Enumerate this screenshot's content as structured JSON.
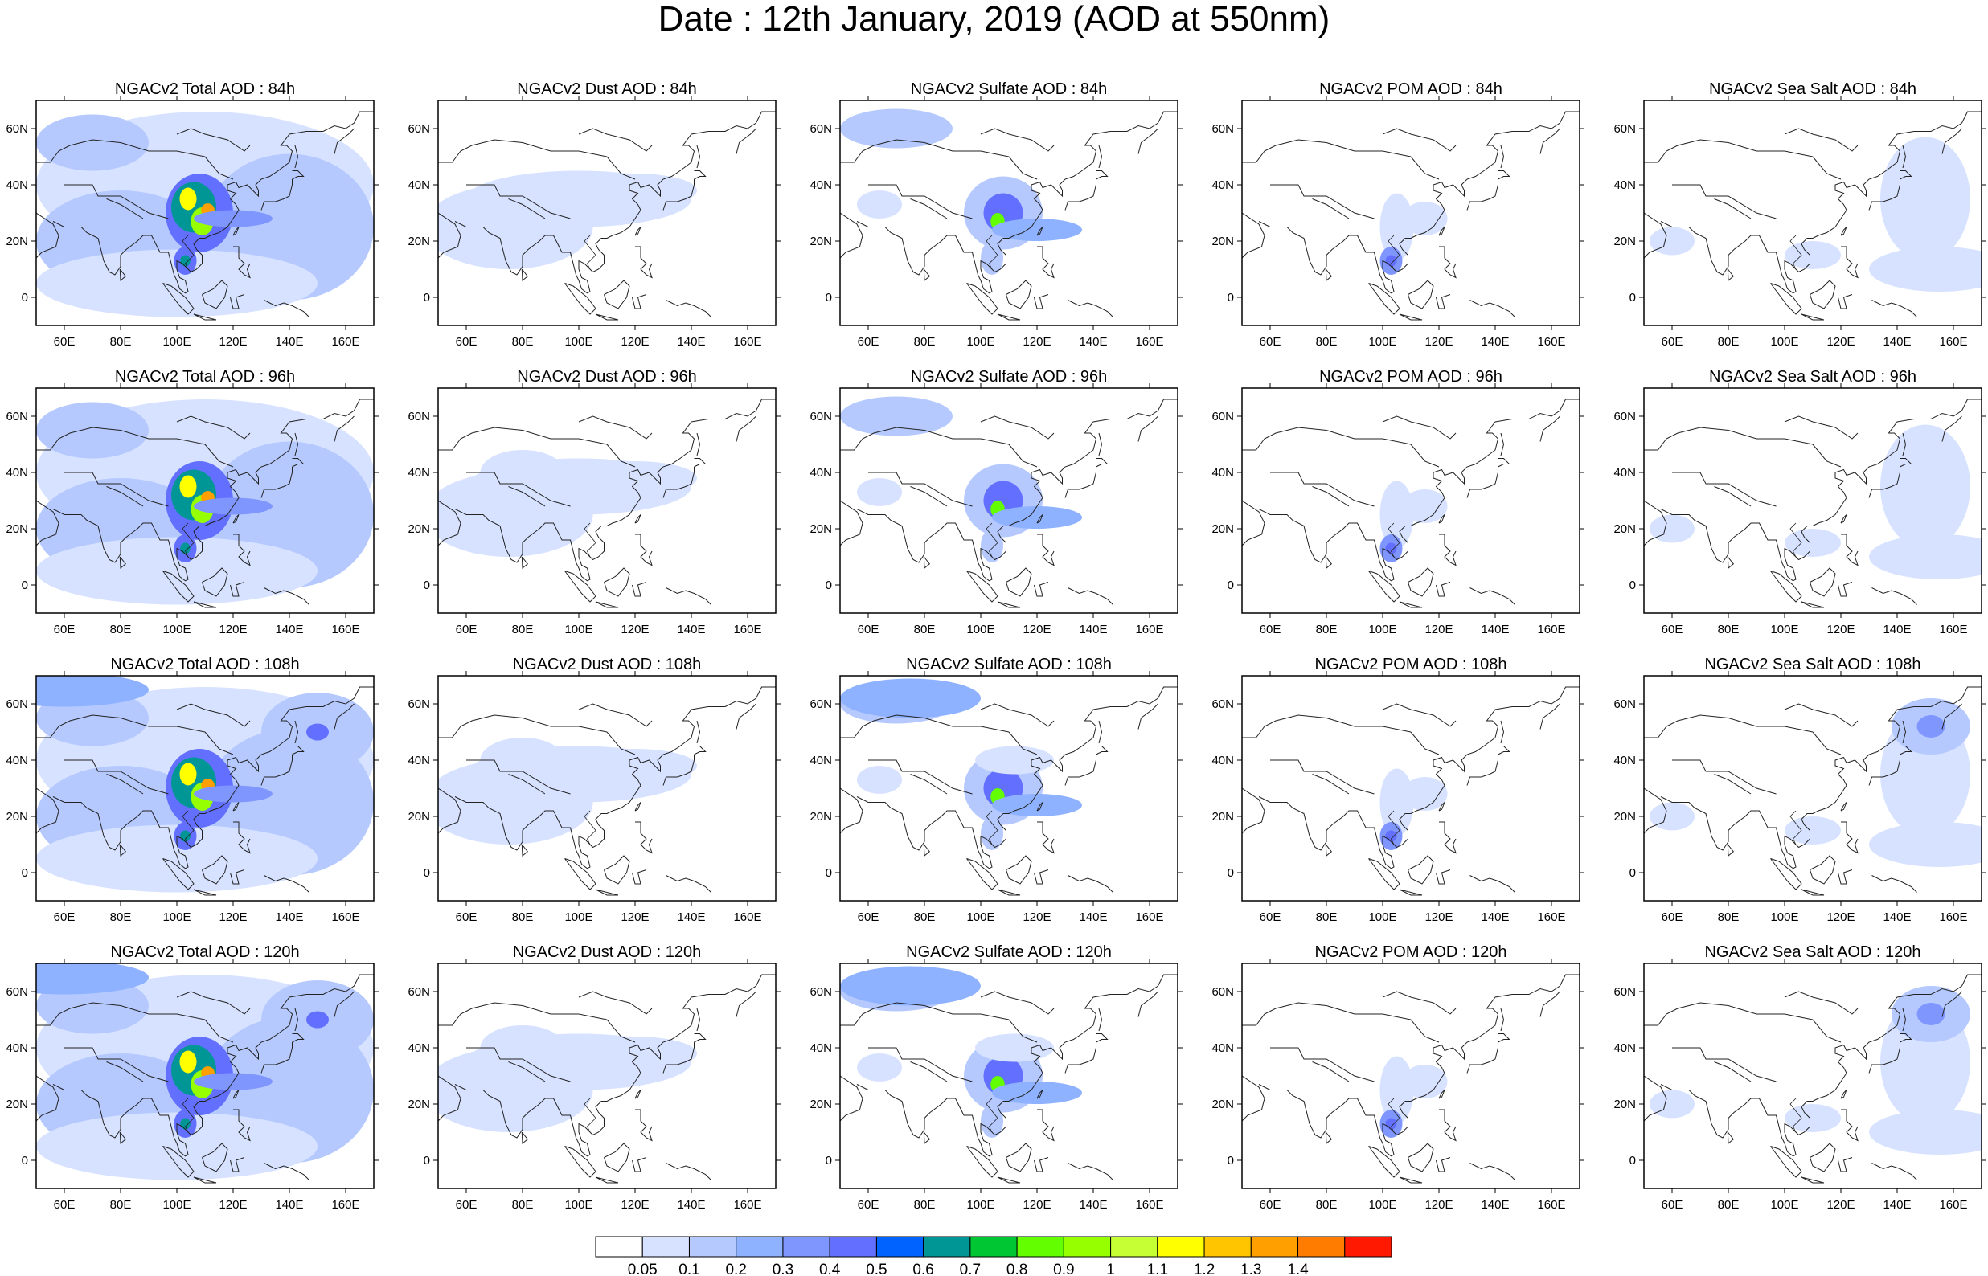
{
  "title": "Date : 12th January, 2019 (AOD at 550nm)",
  "species": [
    "Total",
    "Dust",
    "Sulfate",
    "POM",
    "Sea Salt"
  ],
  "panel_titles": [
    [
      "NGACv2 Total AOD : 84h",
      "NGACv2 Dust AOD : 84h",
      "NGACv2 Sulfate AOD : 84h",
      "NGACv2 POM AOD : 84h",
      "NGACv2 Sea Salt AOD : 84h"
    ],
    [
      "NGACv2 Total AOD : 96h",
      "NGACv2 Dust AOD : 96h",
      "NGACv2 Sulfate AOD : 96h",
      "NGACv2 POM AOD : 96h",
      "NGACv2 Sea Salt AOD : 96h"
    ],
    [
      "NGACv2 Total AOD : 108h",
      "NGACv2 Dust AOD : 108h",
      "NGACv2 Sulfate AOD : 108h",
      "NGACv2 POM AOD : 108h",
      "NGACv2 Sea Salt AOD : 108h"
    ],
    [
      "NGACv2 Total AOD : 120h",
      "NGACv2 Dust AOD : 120h",
      "NGACv2 Sulfate AOD : 120h",
      "NGACv2 POM AOD : 120h",
      "NGACv2 Sea Salt  AOD : 120h"
    ]
  ],
  "lead_hours": [
    "84h",
    "96h",
    "108h",
    "120h"
  ],
  "map_extent": {
    "lon": [
      50,
      170
    ],
    "lat": [
      -10,
      70
    ]
  },
  "x_ticks": [
    {
      "value": 60,
      "label": "60E"
    },
    {
      "value": 80,
      "label": "80E"
    },
    {
      "value": 100,
      "label": "100E"
    },
    {
      "value": 120,
      "label": "120E"
    },
    {
      "value": 140,
      "label": "140E"
    },
    {
      "value": 160,
      "label": "160E"
    }
  ],
  "y_ticks": [
    {
      "value": 0,
      "label": "0"
    },
    {
      "value": 20,
      "label": "20N"
    },
    {
      "value": 40,
      "label": "40N"
    },
    {
      "value": 60,
      "label": "60N"
    }
  ],
  "colorbar": {
    "colors": [
      "#ffffff",
      "#d6e2ff",
      "#b5c9ff",
      "#8eb2ff",
      "#7f96ff",
      "#6370ff",
      "#0063ff",
      "#009696",
      "#00c633",
      "#63ff00",
      "#96ff00",
      "#c6ff33",
      "#ffff00",
      "#ffc600",
      "#ffa000",
      "#ff7c00",
      "#ff1900"
    ],
    "labels": [
      "0.05",
      "0.1",
      "0.2",
      "0.3",
      "0.4",
      "0.5",
      "0.6",
      "0.7",
      "0.8",
      "0.9",
      "1",
      "1.1",
      "1.2",
      "1.3",
      "1.4"
    ]
  }
}
